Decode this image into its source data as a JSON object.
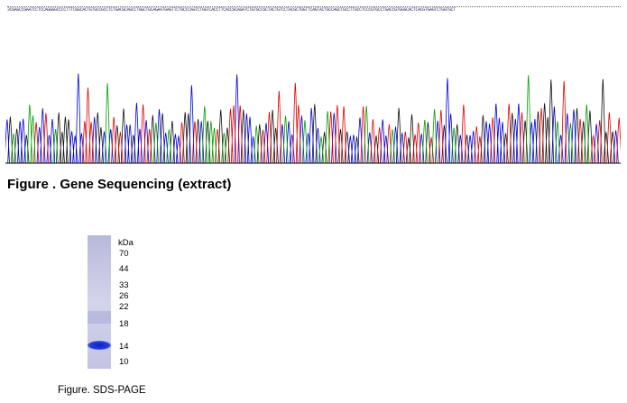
{
  "sequence_text": "3CGAGCCGAATCCTCCAGGGGCCCCTTTCGGCACTGTGCCGCCTCTGACGCAGCCTGGCTGCAGAATGAGTTCTGCCCAGTCTGGTCACCTTCACCGCAGATCTGTGCCGCTACTGTCCTACGCTGGTTCAGTACTGCCAGCTGCCTTGCCTCCCGTGCCTGACCGTGGGCACTCACGTGAGTCTGGTGCT",
  "figure1_title": "Figure . Gene Sequencing (extract)",
  "trace_colors": {
    "A": "#00a000",
    "C": "#0000dd",
    "G": "#111111",
    "T": "#e00000"
  },
  "gel": {
    "unit_label": "kDa",
    "markers": [
      "70",
      "44",
      "33",
      "26",
      "22",
      "18",
      "14",
      "10"
    ],
    "band_color": "#1a2fd0",
    "lane_color": "#c9cbe3"
  },
  "figure2_caption": "Figure. SDS-PAGE"
}
